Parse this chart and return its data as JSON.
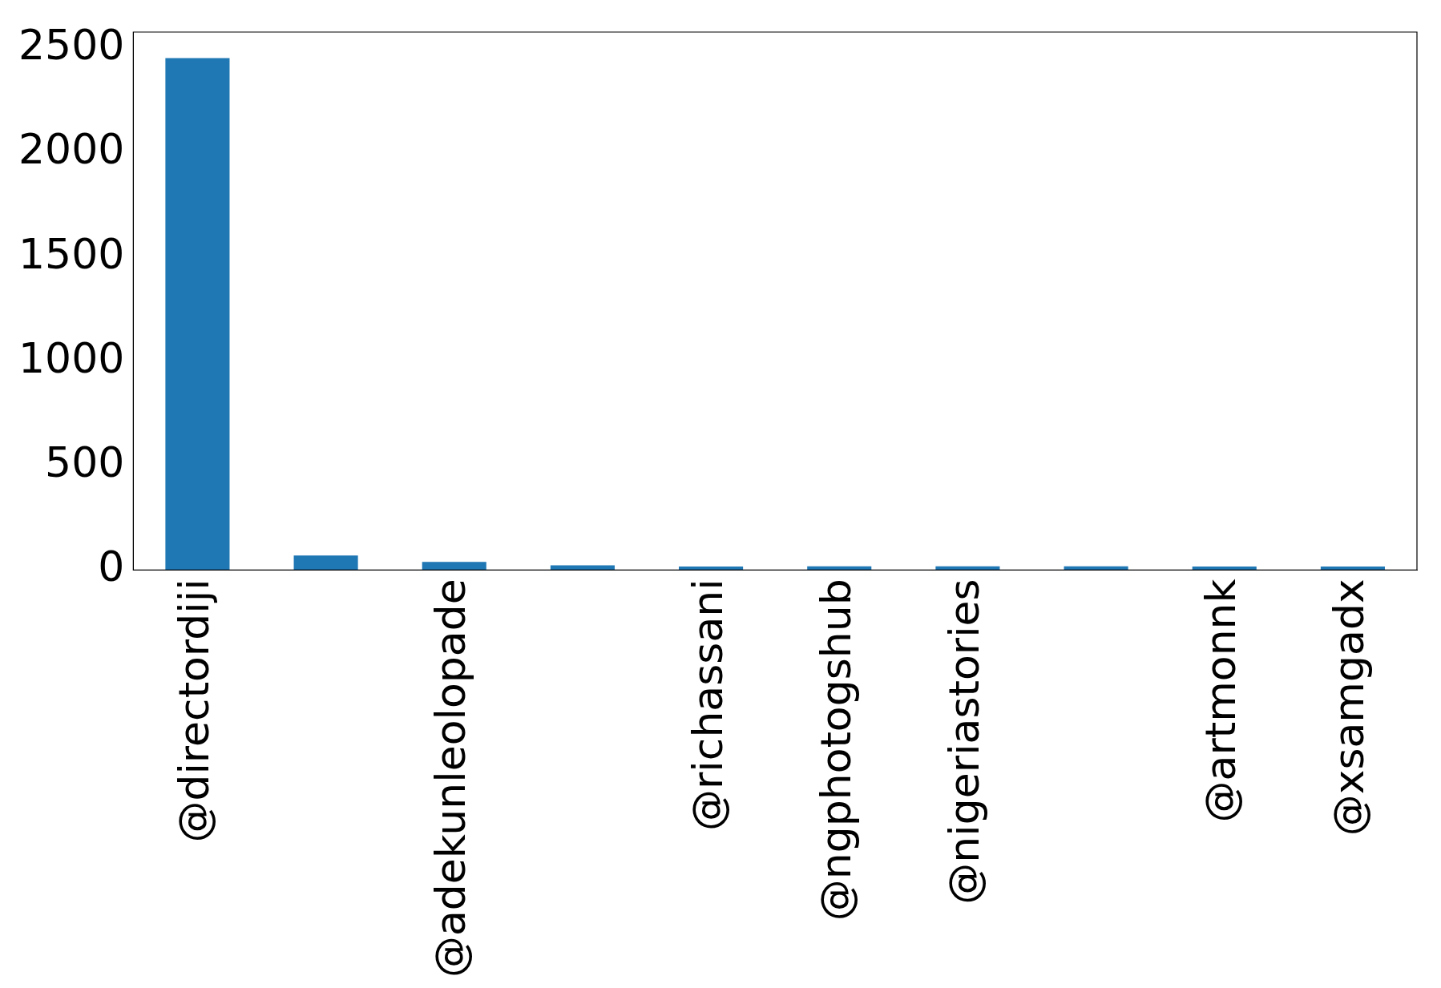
{
  "chart_data": {
    "type": "bar",
    "categories": [
      "@directordiji",
      null,
      "@adekunleolopade",
      null,
      "@richassani",
      "@ngphotogshub",
      "@nigeriastories",
      null,
      "@artmonnk",
      "@xsamgadx"
    ],
    "values": [
      2455,
      69,
      39,
      22,
      17,
      18,
      18,
      18,
      17,
      17
    ],
    "color": "#1f77b4",
    "ylim": [
      0,
      2580
    ],
    "yticks": [
      0,
      500,
      1000,
      1500,
      2000,
      2500
    ],
    "grid": false,
    "legend": false
  }
}
